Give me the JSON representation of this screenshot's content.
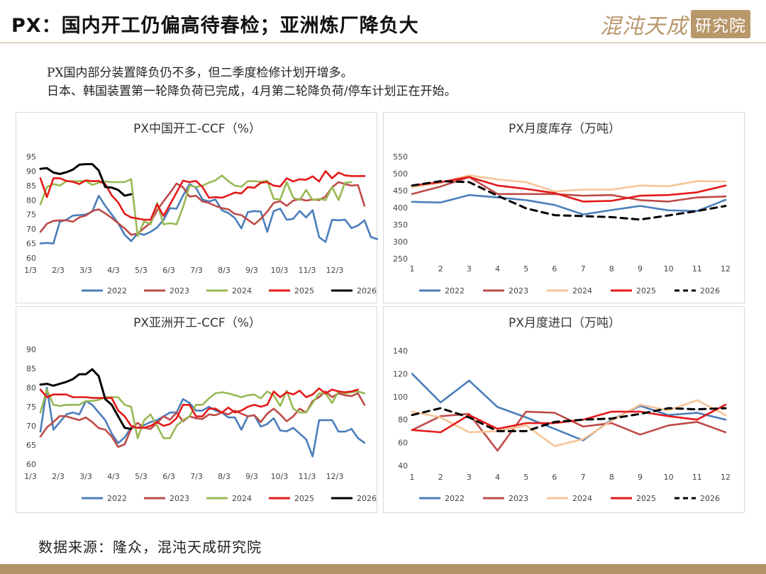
{
  "header": {
    "title": "PX：国内开工仍偏高待春检；亚洲炼厂降负大",
    "logo_text": "混沌天成",
    "logo_seal": "研究院"
  },
  "notes": [
    "PX国内部分装置降负仍不多，但二季度检修计划开增多。",
    "日本、韩国装置第一轮降负荷已完成，4月第二轮降负荷/停车计划正在开始。"
  ],
  "footer": {
    "source": "数据来源：隆众，混沌天成研究院"
  },
  "colors": {
    "2022": "#4a7ebb",
    "2023": "#be4b48",
    "2024": "#98b954",
    "2024_monthly": "#f6c497",
    "2025": "#e41a1a",
    "2026": "#000000"
  },
  "chart_data": [
    {
      "id": "cn",
      "type": "line",
      "title": "PX中国开工-CCF（%）",
      "ylim": [
        60,
        95
      ],
      "yticks": [
        60,
        65,
        70,
        75,
        80,
        85,
        90,
        95
      ],
      "xticks": [
        "1/3",
        "2/3",
        "3/3",
        "4/3",
        "5/3",
        "6/3",
        "7/3",
        "8/3",
        "9/3",
        "10/3",
        "11/3",
        "12/3"
      ],
      "npoints": 52,
      "series": [
        {
          "name": "2022",
          "values": [
            65,
            65.2,
            65,
            72.5,
            73.2,
            74.6,
            74.8,
            75,
            76,
            81.5,
            78,
            75,
            72,
            68,
            65.8,
            68.5,
            68,
            69,
            70.5,
            73.2,
            77.2,
            77,
            81.5,
            85.5,
            84.2,
            80.2,
            79.5,
            80.2,
            76.5,
            75.5,
            73.8,
            70.2,
            75.8,
            76.2,
            76,
            69,
            76.2,
            77,
            73.2,
            73.5,
            76.2,
            74,
            76.5,
            67.2,
            65.5,
            73.2,
            73,
            73.2,
            70.3,
            71.2,
            73,
            67.2,
            66.5
          ]
        },
        {
          "name": "2023",
          "values": [
            69,
            71.8,
            72.8,
            73,
            73,
            72.5,
            74,
            74.6,
            76.2,
            76.8,
            75.4,
            73.8,
            72,
            70.2,
            68,
            68.4,
            70.3,
            72.2,
            76.5,
            79.6,
            82.5,
            85.7,
            84.4,
            81.2,
            81.5,
            79.5,
            79,
            78,
            77.2,
            76.8,
            75.2,
            74.8,
            73.2,
            71.6,
            73.5,
            76,
            79,
            79.6,
            78,
            79.8,
            80.4,
            79.8,
            80.2,
            80,
            81.2,
            84.4,
            86.2,
            85.5,
            85,
            85.2,
            78
          ]
        },
        {
          "name": "2024",
          "values": [
            78.5,
            84.5,
            85.5,
            85,
            86.5,
            86.5,
            86.5,
            86.6,
            85.2,
            86,
            86.4,
            86.2,
            86.2,
            86.2,
            87.2,
            67.5,
            72.6,
            71.6,
            79,
            71.6,
            72,
            71.6,
            77.5,
            85,
            84.5,
            85,
            86,
            86.8,
            88.5,
            86.5,
            85,
            84.6,
            86.5,
            86.5,
            86.3,
            86.7,
            80.4,
            80.2,
            86.2,
            80.8,
            80,
            83.5,
            80,
            80.4,
            80,
            84.5,
            80,
            86,
            86.2
          ]
        },
        {
          "name": "2025",
          "values": [
            87.5,
            81,
            87.5,
            87.5,
            86.6,
            86.3,
            85.5,
            86.8,
            86.5,
            86.6,
            85.5,
            81.6,
            79.2,
            75.2,
            74,
            73.6,
            73.2,
            73.2,
            78.5,
            74.5,
            78.5,
            82.6,
            86.7,
            86.2,
            86.6,
            84.5,
            80.8,
            81,
            80.8,
            81.6,
            82.6,
            82.3,
            84.5,
            84.2,
            86,
            86.2,
            85,
            84.7,
            87.5,
            86.4,
            87.2,
            87,
            88.2,
            86.4,
            90,
            87.5,
            89.5,
            88.5,
            88.3,
            88.3,
            88.3
          ]
        },
        {
          "name": "2026",
          "values": [
            90.8,
            91,
            89.5,
            89,
            89.6,
            90.5,
            92.2,
            92.4,
            92.4,
            90.2,
            84.5,
            84.3,
            83.5,
            81.5,
            82
          ]
        }
      ],
      "legend": [
        "2022",
        "2023",
        "2024",
        "2025",
        "2026"
      ]
    },
    {
      "id": "cn_stock",
      "type": "line",
      "title": "PX月度库存（万吨）",
      "ylim": [
        250,
        550
      ],
      "yticks": [
        250,
        300,
        350,
        400,
        450,
        500,
        550
      ],
      "xticks": [
        "1",
        "2",
        "3",
        "4",
        "5",
        "6",
        "7",
        "8",
        "9",
        "10",
        "11",
        "12"
      ],
      "npoints": 12,
      "series": [
        {
          "name": "2022",
          "values": [
            417,
            415,
            437,
            430,
            422,
            408,
            380,
            393,
            405,
            392,
            390,
            423
          ]
        },
        {
          "name": "2023",
          "values": [
            440,
            462,
            490,
            440,
            440,
            440,
            435,
            437,
            422,
            418,
            430,
            433
          ]
        },
        {
          "name": "2024",
          "values": [
            460,
            473,
            495,
            483,
            475,
            448,
            453,
            453,
            465,
            463,
            478,
            477
          ]
        },
        {
          "name": "2025",
          "values": [
            465,
            475,
            490,
            465,
            455,
            443,
            418,
            420,
            435,
            437,
            445,
            465
          ]
        },
        {
          "name": "2026",
          "values": [
            465,
            478,
            475,
            435,
            398,
            378,
            375,
            372,
            365,
            377,
            390,
            405
          ],
          "dashed": true
        }
      ],
      "legend": [
        "2022",
        "2023",
        "2024",
        "2025",
        "2026"
      ]
    },
    {
      "id": "asia",
      "type": "line",
      "title": "PX亚洲开工-CCF（%）",
      "ylim": [
        60,
        90
      ],
      "yticks": [
        60,
        65,
        70,
        75,
        80,
        85,
        90
      ],
      "xticks": [
        "1/3",
        "2/3",
        "3/3",
        "4/3",
        "5/3",
        "6/3",
        "7/3",
        "8/3",
        "9/3",
        "10/3",
        "11/3",
        "12/3"
      ],
      "npoints": 52,
      "series": [
        {
          "name": "2022",
          "values": [
            68.5,
            80,
            69,
            71,
            73,
            73.5,
            73,
            76.5,
            75.5,
            73.5,
            71.5,
            68,
            65.5,
            67,
            69.6,
            69.5,
            70.2,
            71,
            71.5,
            72.5,
            73.5,
            73.5,
            77,
            76,
            74,
            74,
            75,
            74,
            73.5,
            72.2,
            72.2,
            69,
            72.5,
            72.8,
            69.8,
            70.5,
            72,
            68.8,
            68.6,
            69.5,
            68,
            66.5,
            62,
            71.5,
            71.5,
            71.5,
            68.5,
            68.5,
            69.2,
            66.8,
            65.6
          ]
        },
        {
          "name": "2023",
          "values": [
            67.2,
            69.6,
            71,
            72.6,
            72.5,
            72,
            71.5,
            72.2,
            71,
            69.4,
            69,
            67.2,
            64.5,
            65.2,
            69.3,
            70.8,
            69.5,
            69.2,
            70.8,
            72.5,
            71.6,
            73.5,
            71.2,
            72.5,
            72,
            71.8,
            73,
            72.8,
            73.5,
            73,
            74,
            73.2,
            72.5,
            72.8,
            71,
            73.2,
            74.5,
            73,
            71.2,
            72.5,
            74.5,
            73.5,
            76.5,
            77.5,
            79,
            77.5,
            78.5,
            78,
            77.8,
            78.5,
            75.5
          ]
        },
        {
          "name": "2024",
          "values": [
            73.5,
            79.5,
            75.5,
            75.2,
            75.5,
            75.5,
            75.5,
            76.5,
            76.5,
            76.8,
            77.5,
            77.5,
            77.5,
            75.5,
            75,
            66.8,
            71.5,
            73,
            70,
            66.8,
            66.8,
            70,
            71.5,
            72.5,
            75.5,
            75.5,
            77.2,
            78.5,
            78.8,
            78.5,
            78,
            77.5,
            78,
            78.2,
            77.2,
            79,
            78,
            75.2,
            79.2,
            74.5,
            73.5,
            73.5,
            76,
            78.5,
            78.5,
            76,
            79,
            78.5,
            78.8,
            79,
            78.5
          ]
        },
        {
          "name": "2025",
          "values": [
            79.5,
            77.5,
            78.2,
            78.2,
            78.2,
            77.5,
            77.5,
            77.5,
            77.3,
            77.3,
            77.3,
            77.3,
            74,
            72.5,
            70,
            69.5,
            69.5,
            70,
            71,
            70,
            70.5,
            72,
            75.5,
            75.5,
            72.5,
            72.5,
            74.5,
            74.5,
            73.5,
            74.8,
            73.5,
            74,
            75,
            75.5,
            75,
            75.5,
            79,
            77.5,
            78.8,
            78.2,
            79.2,
            77.5,
            78.2,
            79.8,
            78.5,
            79.5,
            79,
            78.8,
            79,
            79.5
          ]
        },
        {
          "name": "2026",
          "values": [
            80.8,
            81,
            80.5,
            81,
            81.5,
            82.2,
            83.5,
            83.5,
            84.8,
            83,
            77,
            75.5,
            72.5,
            69.5,
            69.2
          ]
        }
      ],
      "legend": [
        "2022",
        "2023",
        "2024",
        "2025",
        "2026"
      ]
    },
    {
      "id": "import",
      "type": "line",
      "title": "PX月度进口（万吨）",
      "ylim": [
        40,
        140
      ],
      "yticks": [
        40,
        60,
        80,
        100,
        120,
        140
      ],
      "xticks": [
        "1",
        "2",
        "3",
        "4",
        "5",
        "6",
        "7",
        "8",
        "9",
        "10",
        "11",
        "12"
      ],
      "npoints": 12,
      "series": [
        {
          "name": "2022",
          "values": [
            120,
            95,
            114,
            91,
            82,
            72,
            62,
            80,
            92,
            84,
            86,
            80
          ]
        },
        {
          "name": "2023",
          "values": [
            71,
            83,
            85,
            53,
            87,
            86,
            74,
            77,
            67,
            75,
            78,
            69
          ]
        },
        {
          "name": "2024",
          "values": [
            87,
            82,
            69,
            70,
            75,
            57,
            63,
            79,
            93,
            88,
            97,
            84
          ]
        },
        {
          "name": "2025",
          "values": [
            71,
            69,
            84,
            72,
            77,
            77,
            80,
            87,
            87,
            83,
            80,
            93
          ]
        },
        {
          "name": "2026",
          "values": [
            84,
            90,
            82,
            70,
            70,
            78,
            80,
            81,
            85,
            90,
            89,
            90
          ],
          "dashed": true
        }
      ],
      "legend": [
        "2022",
        "2023",
        "2024",
        "2025",
        "2026"
      ]
    }
  ]
}
